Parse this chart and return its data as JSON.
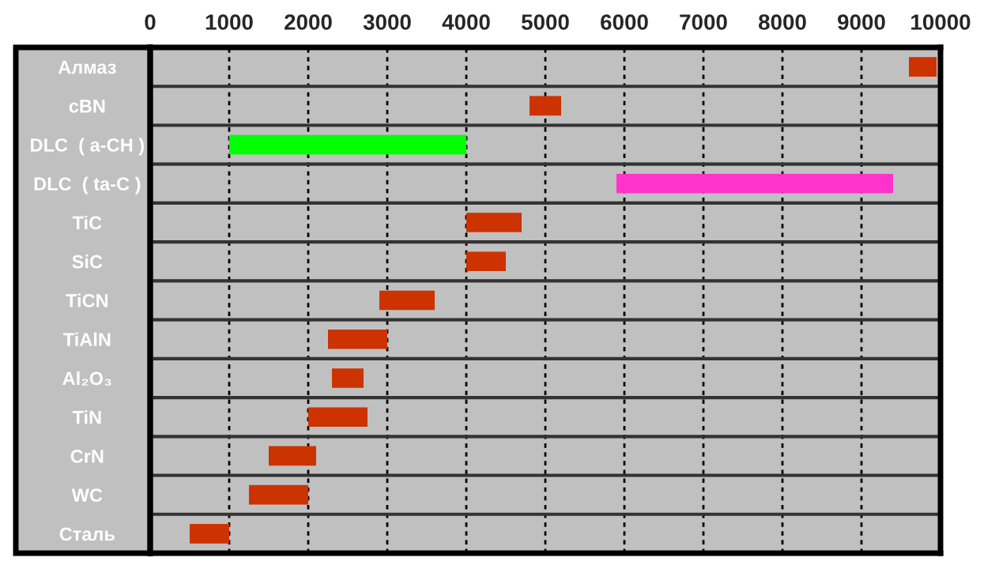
{
  "chart_data": {
    "type": "bar",
    "orientation": "horizontal",
    "categories": [
      "Алмаз",
      "cBN",
      "DLC  ( a-CH )",
      "DLC  ( ta-C )",
      "TiC",
      "SiC",
      "TiCN",
      "TiAlN",
      "Al₂O₃",
      "TiN",
      "CrN",
      "WC",
      "Сталь"
    ],
    "base": [
      9600,
      4800,
      1000,
      5900,
      4000,
      4000,
      2900,
      2250,
      2300,
      2000,
      1500,
      1250,
      500
    ],
    "values": [
      350,
      400,
      3000,
      3500,
      700,
      500,
      700,
      750,
      400,
      750,
      600,
      750,
      500
    ],
    "colors": [
      "#cc3300",
      "#cc3300",
      "#00ff00",
      "#ff33cc",
      "#cc3300",
      "#cc3300",
      "#cc3300",
      "#cc3300",
      "#cc3300",
      "#cc3300",
      "#cc3300",
      "#cc3300",
      "#cc3300"
    ],
    "xlim": [
      0,
      10000
    ],
    "xticks": [
      0,
      1000,
      2000,
      3000,
      4000,
      5000,
      6000,
      7000,
      8000,
      9000,
      10000
    ],
    "grid": "x",
    "legend": false
  }
}
